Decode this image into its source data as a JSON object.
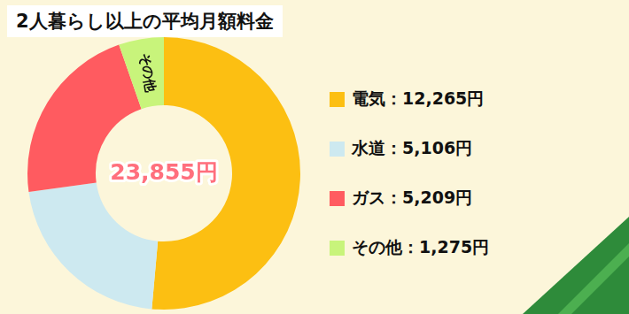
{
  "chart_data": {
    "type": "doughnut",
    "title": "2人暮らし以上の平均月額料金",
    "categories": [
      "電気",
      "水道",
      "ガス",
      "その他"
    ],
    "values": [
      12265,
      5106,
      5209,
      1275
    ],
    "value_labels": [
      "12,265円",
      "5,106円",
      "5,209円",
      "1,275円"
    ],
    "legend_labels": [
      "電気：12,265円",
      "水道：5,106円",
      "ガス：5,209円",
      "その他：1,275円"
    ],
    "slice_labels": [
      null,
      null,
      null,
      "その他"
    ],
    "center_label": {
      "value": 23855,
      "label": "23,855円"
    },
    "colors": [
      "#fcbf12",
      "#cde9f0",
      "#ff5b60",
      "#c8f47b"
    ],
    "legend": "right"
  }
}
